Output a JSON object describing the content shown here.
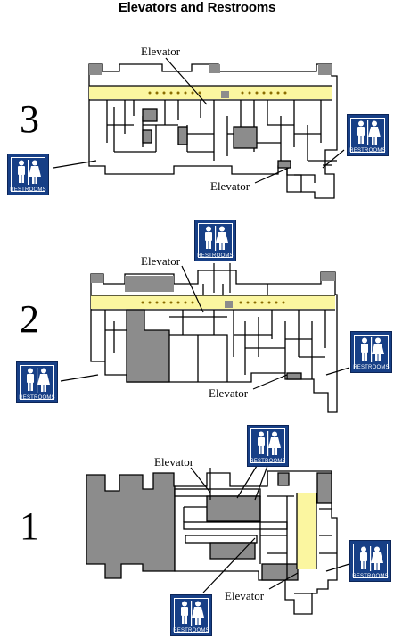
{
  "title": "Elevators and Restrooms",
  "floors": [
    {
      "number": "3",
      "elevator_label": "Elevator",
      "elevator_label_2": "Elevator",
      "restroom_label": "RESTROOMS"
    },
    {
      "number": "2",
      "elevator_label": "Elevator",
      "elevator_label_2": "Elevator",
      "restroom_label": "RESTROOMS"
    },
    {
      "number": "1",
      "elevator_label": "Elevator",
      "elevator_label_2": "Elevator",
      "restroom_label": "RESTROOMS"
    }
  ],
  "colors": {
    "restroom_sign": "#173f86",
    "highlight": "#fbf6a0",
    "fill_gray": "#8c8c8c",
    "walls": "#000000"
  },
  "icons": [
    "restroom-sign-icon",
    "man-icon",
    "woman-icon",
    "elevator-dot-icon"
  ]
}
